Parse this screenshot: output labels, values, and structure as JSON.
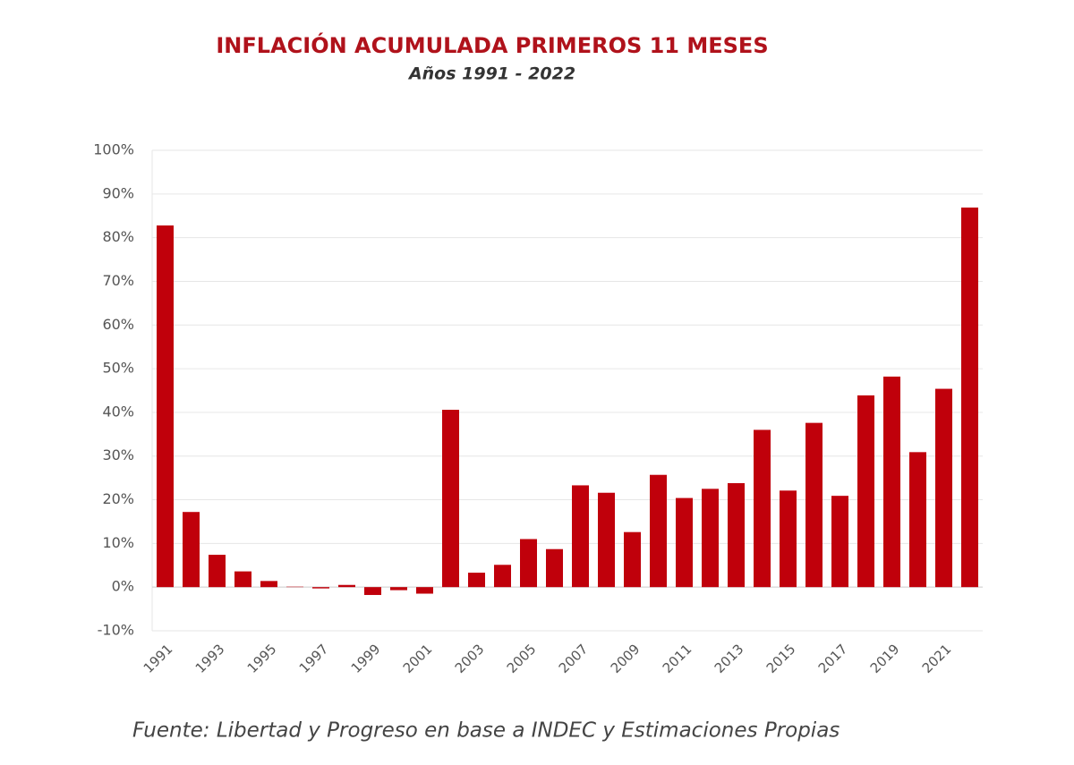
{
  "chart_data": {
    "type": "bar",
    "title": "INFLACIÓN ACUMULADA PRIMEROS 11 MESES",
    "subtitle": "Años 1991 - 2022",
    "source": "Fuente: Libertad y Progreso en base a INDEC y Estimaciones Propias",
    "categories": [
      "1991",
      null,
      "1993",
      null,
      "1995",
      null,
      "1997",
      null,
      "1999",
      null,
      "2001",
      null,
      "2003",
      null,
      "2005",
      null,
      "2007",
      null,
      "2009",
      null,
      "2011",
      null,
      "2013",
      null,
      "2015",
      null,
      "2017",
      null,
      "2019",
      null,
      "2021",
      null
    ],
    "values": [
      82.8,
      17.2,
      7.4,
      3.6,
      1.4,
      0.1,
      -0.3,
      0.5,
      -1.8,
      -0.7,
      -1.5,
      40.6,
      3.3,
      5.1,
      11.0,
      8.7,
      23.3,
      21.6,
      12.6,
      25.7,
      20.4,
      22.5,
      23.8,
      36.0,
      22.1,
      37.6,
      20.9,
      43.9,
      48.2,
      30.9,
      45.4,
      86.9
    ],
    "color": "#c0000b",
    "ylim": [
      -10,
      100
    ],
    "yticks": [
      {
        "value": -10,
        "label": "-10%"
      },
      {
        "value": 0,
        "label": "0%"
      },
      {
        "value": 10,
        "label": "10%"
      },
      {
        "value": 20,
        "label": "20%"
      },
      {
        "value": 30,
        "label": "30%"
      },
      {
        "value": 40,
        "label": "40%"
      },
      {
        "value": 50,
        "label": "50%"
      },
      {
        "value": 60,
        "label": "60%"
      },
      {
        "value": 70,
        "label": "70%"
      },
      {
        "value": 80,
        "label": "80%"
      },
      {
        "value": 90,
        "label": "90%"
      },
      {
        "value": 100,
        "label": "100%"
      }
    ],
    "grid": true
  }
}
